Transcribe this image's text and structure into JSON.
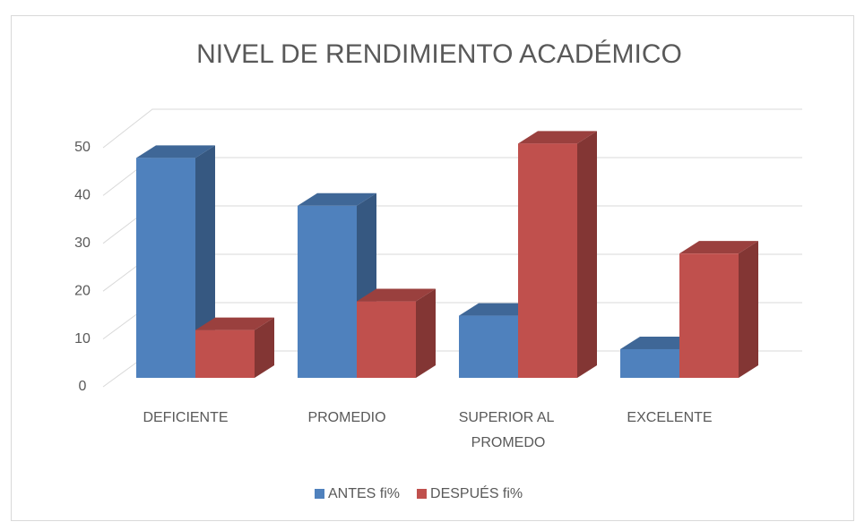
{
  "chart_data": {
    "type": "bar3d",
    "title": "NIVEL DE RENDIMIENTO ACADÉMICO",
    "categories": [
      "DEFICIENTE",
      "PROMEDIO",
      "SUPERIOR AL PROMEDO",
      "EXCELENTE"
    ],
    "series": [
      {
        "name": "ANTES fi%",
        "color": "#4f81bd",
        "values": [
          46,
          36,
          13,
          6
        ]
      },
      {
        "name": "DESPUÉS fi%",
        "color": "#c0504d",
        "values": [
          10,
          16,
          49,
          26
        ]
      }
    ],
    "ylim": [
      0,
      50
    ],
    "yticks": [
      0,
      10,
      20,
      30,
      40,
      50
    ],
    "grid": true,
    "legend": "bottom"
  }
}
